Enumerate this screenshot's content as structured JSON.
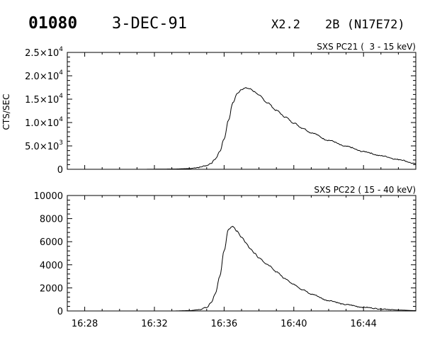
{
  "header": {
    "event_id": "01080",
    "date": "3-DEC-91",
    "goes_class": "X2.2",
    "optical": "2B (N17E72)"
  },
  "chart_data": [
    {
      "type": "line",
      "title": "SXS PC21 (  3 - 15 keV)",
      "ylabel": "CTS/SEC",
      "xlabel": "",
      "ylim": [
        0,
        25000
      ],
      "xlim": [
        "16:27:00",
        "16:47:00"
      ],
      "xtick_labels": [],
      "ytick_labels": [
        {
          "value": 0,
          "label": "0"
        },
        {
          "value": 5000,
          "mant": "5.0",
          "exp": "3"
        },
        {
          "value": 10000,
          "mant": "1.0",
          "exp": "4"
        },
        {
          "value": 15000,
          "mant": "1.5",
          "exp": "4"
        },
        {
          "value": 20000,
          "mant": "2.0",
          "exp": "4"
        },
        {
          "value": 25000,
          "mant": "2.5",
          "exp": "4"
        }
      ],
      "series": [
        {
          "x": [
            "16:27:00",
            "16:31:00",
            "16:33:00",
            "16:34:00",
            "16:34:30",
            "16:35:00",
            "16:35:15",
            "16:35:30",
            "16:35:45",
            "16:36:00",
            "16:36:15",
            "16:36:30",
            "16:36:45",
            "16:37:00",
            "16:37:15",
            "16:37:30",
            "16:37:45",
            "16:38:00",
            "16:38:30",
            "16:39:00",
            "16:39:30",
            "16:40:00",
            "16:40:30",
            "16:41:00",
            "16:42:00",
            "16:43:00",
            "16:44:00",
            "16:45:00",
            "16:46:00",
            "16:47:00"
          ],
          "values": [
            0,
            0,
            50,
            150,
            400,
            800,
            1300,
            2200,
            3800,
            6500,
            10500,
            14200,
            16200,
            17100,
            17400,
            17200,
            16600,
            15800,
            14200,
            12600,
            11200,
            9900,
            8800,
            7800,
            6200,
            4900,
            3800,
            2900,
            2100,
            1200
          ]
        }
      ]
    },
    {
      "type": "line",
      "title": "SXS PC22 ( 15 - 40 keV)",
      "ylabel": "",
      "xlabel": "",
      "ylim": [
        0,
        10000
      ],
      "xlim": [
        "16:27:00",
        "16:47:00"
      ],
      "xtick_labels": [
        "16:28",
        "16:32",
        "16:36",
        "16:40",
        "16:44"
      ],
      "ytick_labels": [
        {
          "value": 0,
          "label": "0"
        },
        {
          "value": 2000,
          "label": "2000"
        },
        {
          "value": 4000,
          "label": "4000"
        },
        {
          "value": 6000,
          "label": "6000"
        },
        {
          "value": 8000,
          "label": "8000"
        },
        {
          "value": 10000,
          "label": "10000"
        }
      ],
      "series": [
        {
          "x": [
            "16:27:00",
            "16:33:00",
            "16:34:00",
            "16:34:30",
            "16:35:00",
            "16:35:15",
            "16:35:30",
            "16:35:45",
            "16:36:00",
            "16:36:15",
            "16:36:30",
            "16:36:45",
            "16:37:00",
            "16:37:15",
            "16:37:30",
            "16:37:45",
            "16:38:00",
            "16:38:30",
            "16:39:00",
            "16:39:30",
            "16:40:00",
            "16:40:30",
            "16:41:00",
            "16:42:00",
            "16:43:00",
            "16:44:00",
            "16:45:00",
            "16:46:00",
            "16:47:00"
          ],
          "values": [
            0,
            0,
            30,
            100,
            300,
            700,
            1500,
            3000,
            5200,
            7100,
            7300,
            6900,
            6400,
            5900,
            5400,
            5000,
            4600,
            4000,
            3400,
            2800,
            2300,
            1850,
            1450,
            900,
            550,
            320,
            180,
            80,
            30
          ]
        }
      ]
    }
  ]
}
